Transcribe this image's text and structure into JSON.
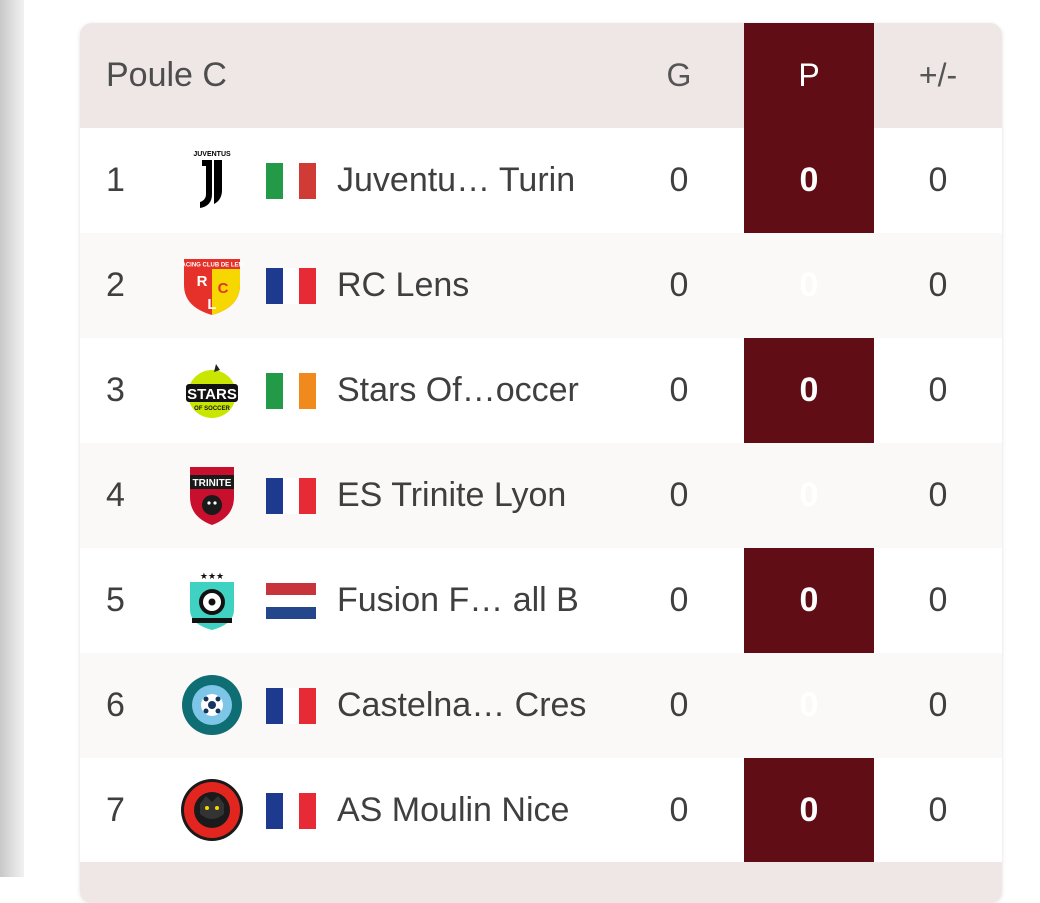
{
  "table": {
    "title": "Poule C",
    "columns": {
      "g": "G",
      "p": "P",
      "diff": "+/-"
    },
    "accent_color": "#600d15",
    "rows": [
      {
        "rank": "1",
        "team": "Juventu…  Turin",
        "logo_icon": "juventus-logo-icon",
        "flag_icon": "italy-flag-icon",
        "g": "0",
        "p": "0",
        "diff": "0"
      },
      {
        "rank": "2",
        "team": "RC Lens",
        "logo_icon": "rc-lens-logo-icon",
        "flag_icon": "france-flag-icon",
        "g": "0",
        "p": "0",
        "diff": "0"
      },
      {
        "rank": "3",
        "team": "Stars Of…occer",
        "logo_icon": "stars-of-soccer-logo-icon",
        "flag_icon": "ireland-flag-icon",
        "g": "0",
        "p": "0",
        "diff": "0"
      },
      {
        "rank": "4",
        "team": "ES Trinite Lyon",
        "logo_icon": "es-trinite-lyon-logo-icon",
        "flag_icon": "france-flag-icon",
        "g": "0",
        "p": "0",
        "diff": "0"
      },
      {
        "rank": "5",
        "team": "Fusion F…  all B",
        "logo_icon": "fusion-football-logo-icon",
        "flag_icon": "netherlands-flag-icon",
        "g": "0",
        "p": "0",
        "diff": "0"
      },
      {
        "rank": "6",
        "team": "Castelna… Cres",
        "logo_icon": "castelnau-cres-logo-icon",
        "flag_icon": "france-flag-icon",
        "g": "0",
        "p": "0",
        "diff": "0"
      },
      {
        "rank": "7",
        "team": "AS Moulin Nice",
        "logo_icon": "as-moulin-nice-logo-icon",
        "flag_icon": "france-flag-icon",
        "g": "0",
        "p": "0",
        "diff": "0"
      }
    ]
  }
}
